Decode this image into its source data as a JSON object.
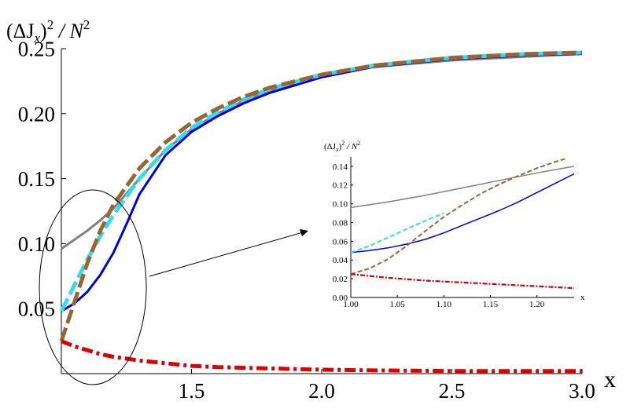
{
  "chart_data": [
    {
      "type": "line",
      "ylabel_parts": {
        "open": "(ΔJ",
        "sub": "x",
        "close": ")",
        "sup1": "2",
        "div": " / N",
        "sup2": "2"
      },
      "xlabel": "x",
      "xlim": [
        1.0,
        3.0
      ],
      "ylim": [
        0.0,
        0.25
      ],
      "xticks": [
        1.5,
        2.0,
        2.5,
        3.0
      ],
      "xtick_labels": [
        "1.5",
        "2.0",
        "2.5",
        "3.0"
      ],
      "yticks": [
        0.05,
        0.1,
        0.15,
        0.2,
        0.25
      ],
      "ytick_labels": [
        "0.05",
        "0.10",
        "0.15",
        "0.20",
        "0.25"
      ],
      "grid": false,
      "series": [
        {
          "color": "#808080",
          "style": "solid",
          "x": [
            1.0,
            1.05,
            1.1,
            1.15,
            1.2,
            1.3,
            1.4,
            1.5,
            1.6,
            1.7,
            1.8,
            2.0,
            2.2,
            2.5,
            2.8,
            3.0
          ],
          "y": [
            0.096,
            0.103,
            0.11,
            0.118,
            0.127,
            0.15,
            0.172,
            0.188,
            0.2,
            0.21,
            0.218,
            0.229,
            0.236,
            0.241,
            0.244,
            0.246
          ]
        },
        {
          "color": "#0000dd",
          "style": "solid",
          "x": [
            1.0,
            1.05,
            1.1,
            1.15,
            1.2,
            1.25,
            1.3,
            1.4,
            1.5,
            1.6,
            1.7,
            1.8,
            2.0,
            2.2,
            2.5,
            2.8,
            3.0
          ],
          "y": [
            0.048,
            0.054,
            0.063,
            0.076,
            0.093,
            0.115,
            0.138,
            0.168,
            0.186,
            0.198,
            0.208,
            0.216,
            0.228,
            0.236,
            0.242,
            0.245,
            0.246
          ]
        },
        {
          "color": "#33ddee",
          "style": "dashed",
          "x": [
            1.0,
            1.05,
            1.1,
            1.15,
            1.2,
            1.3,
            1.4,
            1.5,
            1.6,
            1.7,
            1.8,
            2.0,
            2.2,
            2.5,
            2.8,
            3.0
          ],
          "y": [
            0.048,
            0.068,
            0.088,
            0.106,
            0.122,
            0.15,
            0.172,
            0.189,
            0.201,
            0.211,
            0.219,
            0.23,
            0.237,
            0.243,
            0.246,
            0.247
          ]
        },
        {
          "color": "#996633",
          "style": "dashed",
          "x": [
            1.0,
            1.05,
            1.1,
            1.15,
            1.2,
            1.3,
            1.4,
            1.5,
            1.6,
            1.7,
            1.8,
            2.0,
            2.2,
            2.5,
            2.8,
            3.0
          ],
          "y": [
            0.025,
            0.055,
            0.085,
            0.11,
            0.13,
            0.158,
            0.178,
            0.193,
            0.204,
            0.213,
            0.22,
            0.23,
            0.237,
            0.243,
            0.246,
            0.247
          ]
        },
        {
          "color": "#dd0000",
          "style": "dashdot",
          "x": [
            1.0,
            1.05,
            1.1,
            1.15,
            1.2,
            1.3,
            1.4,
            1.5,
            1.6,
            1.8,
            2.0,
            2.2,
            2.5,
            2.8,
            3.0
          ],
          "y": [
            0.025,
            0.021,
            0.018,
            0.015,
            0.013,
            0.01,
            0.008,
            0.006,
            0.005,
            0.004,
            0.003,
            0.0025,
            0.002,
            0.002,
            0.002
          ]
        }
      ]
    },
    {
      "type": "line",
      "role": "inset",
      "ylabel_parts": {
        "open": "(ΔJ",
        "sub": "x",
        "close": ")",
        "sup1": "2",
        "div": " / N",
        "sup2": "2"
      },
      "xlabel": "x",
      "xlim": [
        1.0,
        1.24
      ],
      "ylim": [
        0.0,
        0.15
      ],
      "xticks": [
        1.0,
        1.05,
        1.1,
        1.15,
        1.2
      ],
      "xtick_labels": [
        "1.00",
        "1.05",
        "1.10",
        "1.15",
        "1.20"
      ],
      "yticks": [
        0.0,
        0.02,
        0.04,
        0.06,
        0.08,
        0.1,
        0.12,
        0.14
      ],
      "ytick_labels": [
        "0.00",
        "0.02",
        "0.04",
        "0.06",
        "0.08",
        "0.10",
        "0.12",
        "0.14"
      ],
      "grid": false,
      "series": [
        {
          "color": "#808080",
          "style": "solid",
          "x": [
            1.0,
            1.04,
            1.08,
            1.12,
            1.16,
            1.2,
            1.24
          ],
          "y": [
            0.096,
            0.102,
            0.109,
            0.117,
            0.125,
            0.133,
            0.14
          ]
        },
        {
          "color": "#0000dd",
          "style": "solid",
          "x": [
            1.0,
            1.02,
            1.04,
            1.06,
            1.08,
            1.1,
            1.12,
            1.14,
            1.16,
            1.18,
            1.2,
            1.22,
            1.24
          ],
          "y": [
            0.048,
            0.05,
            0.053,
            0.057,
            0.062,
            0.069,
            0.077,
            0.085,
            0.093,
            0.102,
            0.112,
            0.122,
            0.132
          ]
        },
        {
          "color": "#33ddee",
          "style": "dashed",
          "x": [
            1.0,
            1.02,
            1.04,
            1.06,
            1.08,
            1.1
          ],
          "y": [
            0.048,
            0.055,
            0.064,
            0.073,
            0.082,
            0.09
          ]
        },
        {
          "color": "#996633",
          "style": "dashed",
          "x": [
            1.0,
            1.02,
            1.04,
            1.06,
            1.08,
            1.1,
            1.12,
            1.14,
            1.16,
            1.18,
            1.2,
            1.22,
            1.23
          ],
          "y": [
            0.025,
            0.031,
            0.041,
            0.055,
            0.071,
            0.086,
            0.099,
            0.111,
            0.121,
            0.13,
            0.138,
            0.145,
            0.148
          ]
        },
        {
          "color": "#dd0000",
          "style": "dashdot",
          "x": [
            1.0,
            1.04,
            1.08,
            1.12,
            1.16,
            1.2,
            1.24
          ],
          "y": [
            0.025,
            0.021,
            0.018,
            0.016,
            0.014,
            0.012,
            0.01
          ]
        }
      ]
    }
  ]
}
